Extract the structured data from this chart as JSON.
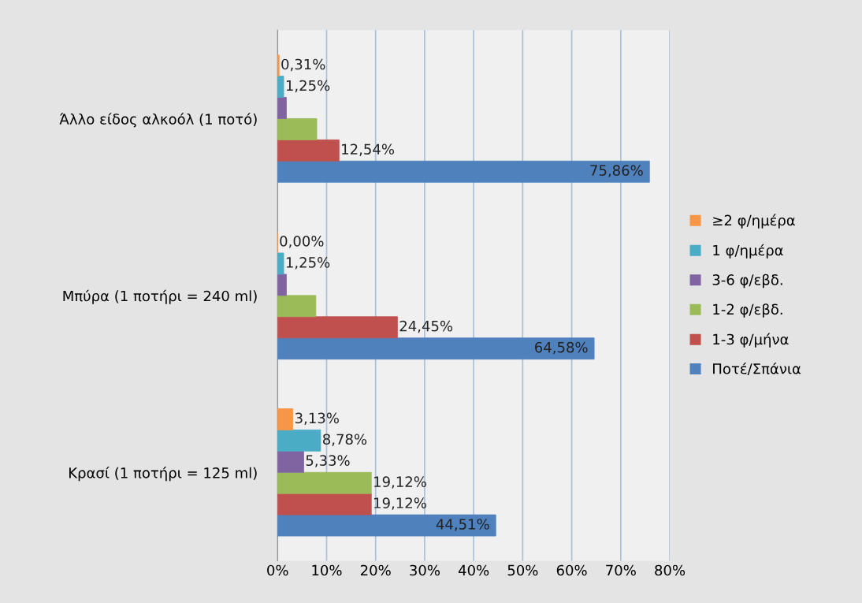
{
  "chart_data": {
    "type": "bar",
    "orientation": "horizontal",
    "categories": [
      "Άλλο είδος αλκοόλ (1 ποτό)",
      "Μπύρα (1 ποτήρι = 240 ml)",
      "Κρασί (1 ποτήρι = 125 ml)"
    ],
    "series": [
      {
        "name": "Ποτέ/Σπάνια",
        "color": "#4f81bd",
        "values": [
          75.86,
          64.58,
          44.51
        ],
        "value_labels": [
          "75,86%",
          "64,58%",
          "44,51%"
        ]
      },
      {
        "name": "1-3 φ/μήνα",
        "color": "#c0504d",
        "values": [
          12.54,
          24.45,
          19.12
        ],
        "value_labels": [
          "12,54%",
          "24,45%",
          "19,12%"
        ]
      },
      {
        "name": "1-2 φ/εβδ.",
        "color": "#9bbb59",
        "values": [
          8.0,
          7.8,
          19.12
        ],
        "value_labels": [
          null,
          null,
          "19,12%"
        ]
      },
      {
        "name": "3-6 φ/εβδ.",
        "color": "#8064a2",
        "values": [
          1.8,
          1.8,
          5.33
        ],
        "value_labels": [
          null,
          null,
          "5,33%"
        ]
      },
      {
        "name": "1 φ/ημέρα",
        "color": "#4bacc6",
        "values": [
          1.25,
          1.25,
          8.78
        ],
        "value_labels": [
          "1,25%",
          "1,25%",
          "8,78%"
        ]
      },
      {
        "name": "≥2 φ/ημέρα",
        "color": "#f79646",
        "values": [
          0.31,
          0.0,
          3.13
        ],
        "value_labels": [
          "0,31%",
          "0,00%",
          "3,13%"
        ]
      }
    ],
    "xlim": [
      0,
      80
    ],
    "xticks": [
      {
        "value": 0,
        "label": "0%"
      },
      {
        "value": 10,
        "label": "10%"
      },
      {
        "value": 20,
        "label": "20%"
      },
      {
        "value": 30,
        "label": "30%"
      },
      {
        "value": 40,
        "label": "40%"
      },
      {
        "value": 50,
        "label": "50%"
      },
      {
        "value": 60,
        "label": "60%"
      },
      {
        "value": 70,
        "label": "70%"
      },
      {
        "value": 80,
        "label": "80%"
      }
    ],
    "grid": "x",
    "legend": "right"
  }
}
